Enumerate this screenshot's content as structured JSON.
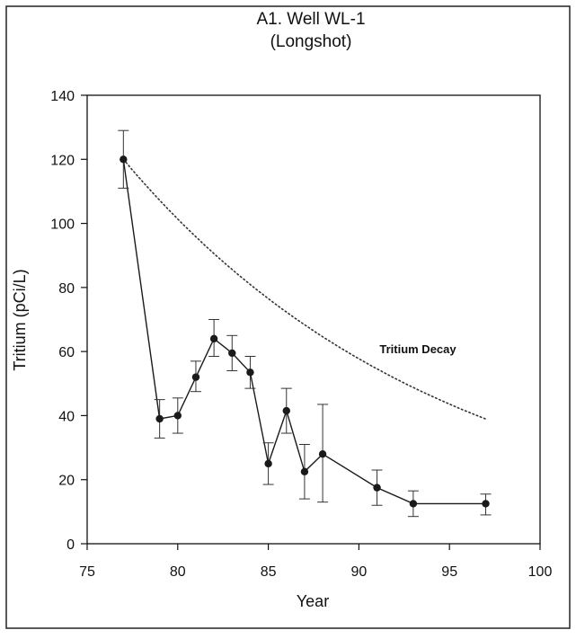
{
  "chart_data": {
    "type": "line",
    "title": "A1. Well WL-1",
    "subtitle": "(Longshot)",
    "xlabel": "Year",
    "ylabel": "Tritium (pCi/L)",
    "xlim": [
      75,
      100
    ],
    "ylim": [
      0,
      140
    ],
    "xticks": [
      "75",
      "80",
      "85",
      "90",
      "95",
      "100"
    ],
    "yticks": [
      "0",
      "20",
      "40",
      "60",
      "80",
      "100",
      "120",
      "140"
    ],
    "grid": false,
    "series": [
      {
        "style": "solid-line-with-markers",
        "color": "#1a1a1a",
        "points": [
          {
            "x": 77,
            "y": 120,
            "err_low": 111,
            "err_high": 129
          },
          {
            "x": 79,
            "y": 39,
            "err_low": 33,
            "err_high": 45
          },
          {
            "x": 80,
            "y": 40,
            "err_low": 34.5,
            "err_high": 45.5
          },
          {
            "x": 81,
            "y": 52,
            "err_low": 47.5,
            "err_high": 57
          },
          {
            "x": 82,
            "y": 64,
            "err_low": 58.5,
            "err_high": 70
          },
          {
            "x": 83,
            "y": 59.5,
            "err_low": 54,
            "err_high": 65
          },
          {
            "x": 84,
            "y": 53.5,
            "err_low": 48.5,
            "err_high": 58.5
          },
          {
            "x": 85,
            "y": 25,
            "err_low": 18.5,
            "err_high": 31.5
          },
          {
            "x": 86,
            "y": 41.5,
            "err_low": 34.5,
            "err_high": 48.5
          },
          {
            "x": 87,
            "y": 22.5,
            "err_low": 14,
            "err_high": 31
          },
          {
            "x": 88,
            "y": 28,
            "err_low": 13,
            "err_high": 43.5
          },
          {
            "x": 91,
            "y": 17.5,
            "err_low": 12,
            "err_high": 23
          },
          {
            "x": 93,
            "y": 12.5,
            "err_low": 8.5,
            "err_high": 16.5
          },
          {
            "x": 97,
            "y": 12.5,
            "err_low": 9,
            "err_high": 15.5
          }
        ]
      },
      {
        "name": "Tritium Decay",
        "style": "dotted",
        "color": "#333333",
        "x0": 77,
        "y0": 120,
        "half_life_years": 12.32,
        "x_end": 97
      }
    ],
    "annotations": [
      {
        "text": "Tritium Decay",
        "x": 90.3,
        "y": 60
      }
    ]
  }
}
